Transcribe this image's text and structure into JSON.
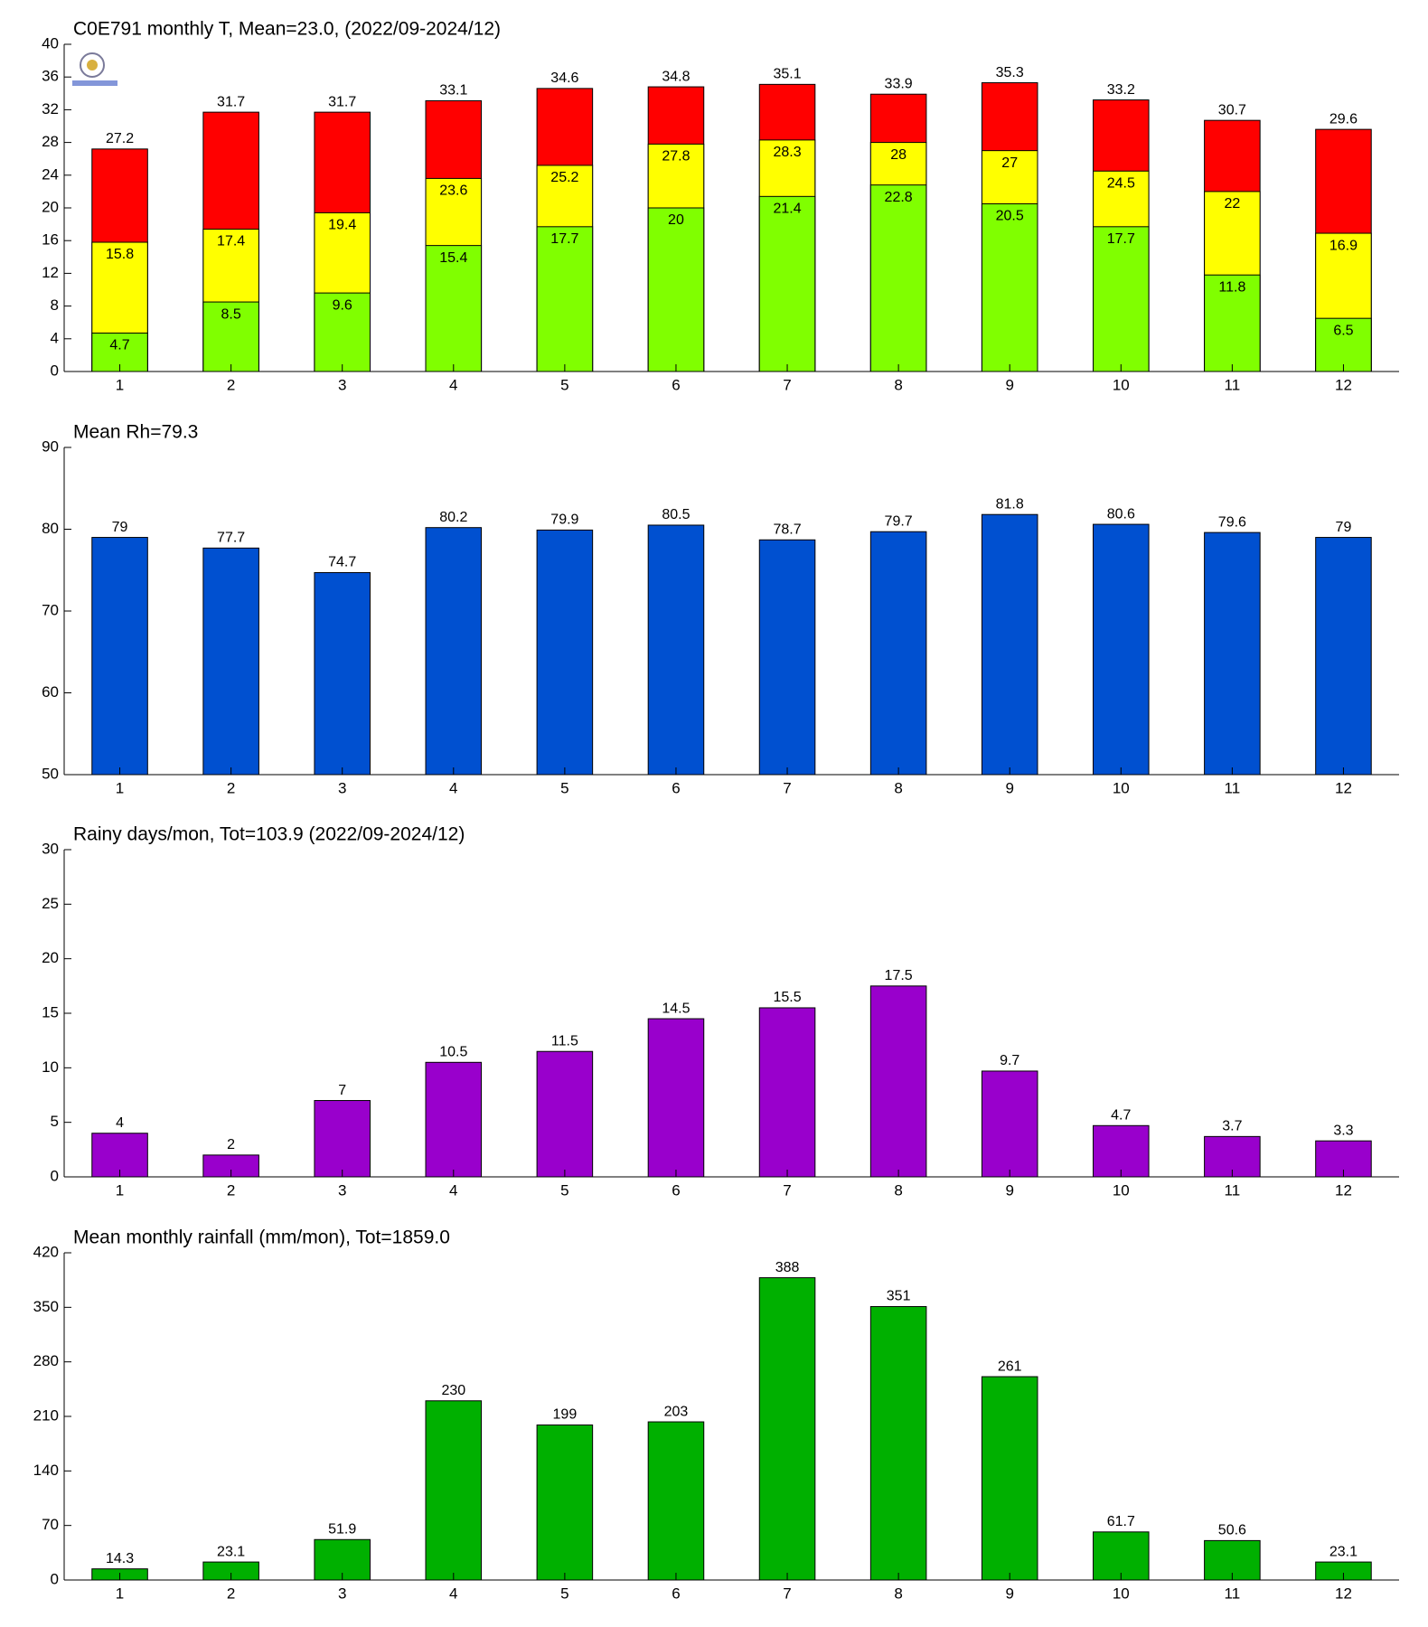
{
  "chart_data": [
    {
      "type": "bar",
      "overlap": true,
      "title": "C0E791 monthly T, Mean=23.0, (2022/09-2024/12)",
      "categories": [
        1,
        2,
        3,
        4,
        5,
        6,
        7,
        8,
        9,
        10,
        11,
        12
      ],
      "series": [
        {
          "color": "#ff0000",
          "values": [
            27.2,
            31.7,
            31.7,
            33.1,
            34.6,
            34.8,
            35.1,
            33.9,
            35.3,
            33.2,
            30.7,
            29.6
          ]
        },
        {
          "color": "#ffff00",
          "values": [
            15.8,
            17.4,
            19.4,
            23.6,
            25.2,
            27.8,
            28.3,
            28,
            27,
            24.5,
            22,
            16.9
          ]
        },
        {
          "color": "#80ff00",
          "values": [
            4.7,
            8.5,
            9.6,
            15.4,
            17.7,
            20,
            21.4,
            22.8,
            20.5,
            17.7,
            11.8,
            6.5
          ]
        }
      ],
      "ylim": [
        0,
        40
      ],
      "yticks": [
        0,
        4,
        8,
        12,
        16,
        20,
        24,
        28,
        32,
        36,
        40
      ],
      "grid": false
    },
    {
      "type": "bar",
      "title": "Mean Rh=79.3",
      "categories": [
        1,
        2,
        3,
        4,
        5,
        6,
        7,
        8,
        9,
        10,
        11,
        12
      ],
      "series": [
        {
          "color": "#0050d0",
          "values": [
            79,
            77.7,
            74.7,
            80.2,
            79.9,
            80.5,
            78.7,
            79.7,
            81.8,
            80.6,
            79.6,
            79
          ]
        }
      ],
      "ylim": [
        50,
        90
      ],
      "yticks": [
        50,
        60,
        70,
        80,
        90
      ],
      "grid": false
    },
    {
      "type": "bar",
      "title": "Rainy days/mon, Tot=103.9 (2022/09-2024/12)",
      "categories": [
        1,
        2,
        3,
        4,
        5,
        6,
        7,
        8,
        9,
        10,
        11,
        12
      ],
      "series": [
        {
          "color": "#9900cc",
          "values": [
            4,
            2,
            7,
            10.5,
            11.5,
            14.5,
            15.5,
            17.5,
            9.7,
            4.7,
            3.7,
            3.3
          ]
        }
      ],
      "ylim": [
        0,
        30
      ],
      "yticks": [
        0,
        5,
        10,
        15,
        20,
        25,
        30
      ],
      "grid": false
    },
    {
      "type": "bar",
      "title": "Mean monthly rainfall (mm/mon), Tot=1859.0",
      "categories": [
        1,
        2,
        3,
        4,
        5,
        6,
        7,
        8,
        9,
        10,
        11,
        12
      ],
      "series": [
        {
          "color": "#00b000",
          "values": [
            14.3,
            23.1,
            51.9,
            230,
            199,
            203,
            388,
            351,
            261,
            61.7,
            50.6,
            23.1
          ]
        }
      ],
      "ylim": [
        0,
        420
      ],
      "yticks": [
        0,
        70,
        140,
        210,
        280,
        350,
        420
      ],
      "grid": false
    }
  ]
}
